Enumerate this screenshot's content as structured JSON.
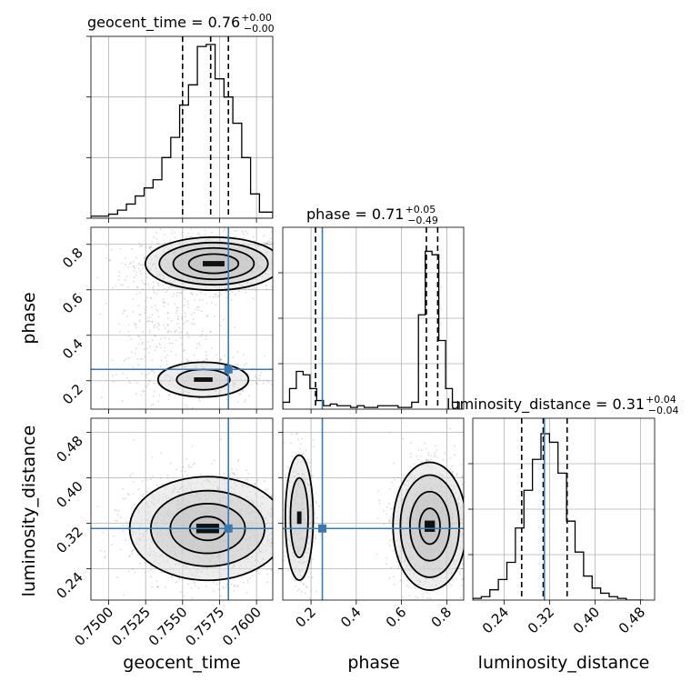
{
  "colors": {
    "truth": "#3b78b0",
    "grid": "#b0b0b0",
    "hist": "#000000",
    "quantile": "#000000",
    "scatter": "#7f7f7f"
  },
  "chart_data": {
    "type": "corner",
    "parameters": [
      "geocent_time",
      "phase",
      "luminosity_distance"
    ],
    "titles": [
      {
        "param": "geocent_time",
        "text": "geocent_time = 0.76",
        "plus": "+0.00",
        "minus": "−0.00"
      },
      {
        "param": "phase",
        "text": "phase = 0.71",
        "plus": "+0.05",
        "minus": "−0.49"
      },
      {
        "param": "luminosity_distance",
        "text": "luminosity_distance = 0.31",
        "plus": "+0.04",
        "minus": "−0.04"
      }
    ],
    "ranges": {
      "geocent_time": [
        0.7488,
        0.7611
      ],
      "phase": [
        0.075,
        0.875
      ],
      "luminosity_distance": [
        0.185,
        0.505
      ]
    },
    "ticks": {
      "geocent_time": {
        "values": [
          0.75,
          0.7525,
          0.755,
          0.7575,
          0.76
        ],
        "labels": [
          "0.7500",
          "0.7525",
          "0.7550",
          "0.7575",
          "0.7600"
        ]
      },
      "phase": {
        "values": [
          0.2,
          0.4,
          0.6,
          0.8
        ],
        "labels": [
          "0.2",
          "0.4",
          "0.6",
          "0.8"
        ]
      },
      "luminosity_distance": {
        "values": [
          0.24,
          0.32,
          0.4,
          0.48
        ],
        "labels": [
          "0.24",
          "0.32",
          "0.40",
          "0.48"
        ]
      }
    },
    "truths": {
      "geocent_time": 0.7581,
      "phase": 0.25,
      "luminosity_distance": 0.311
    },
    "quantiles": {
      "geocent_time": [
        0.755,
        0.7569,
        0.7581
      ],
      "phase": [
        0.22,
        0.71,
        0.76
      ],
      "luminosity_distance": [
        0.271,
        0.309,
        0.351
      ]
    },
    "histograms": {
      "geocent_time": {
        "edges": [
          0.7488,
          0.75,
          0.7506,
          0.7512,
          0.7518,
          0.7524,
          0.753,
          0.7536,
          0.7542,
          0.7548,
          0.7554,
          0.756,
          0.7566,
          0.7572,
          0.7578,
          0.7584,
          0.759,
          0.7596,
          0.7602,
          0.7611
        ],
        "counts": [
          1,
          2,
          4,
          7,
          11,
          15,
          19,
          30,
          40,
          56,
          66,
          85,
          86,
          69,
          60,
          47,
          30,
          12,
          3
        ],
        "max": 90
      },
      "phase": {
        "edges": [
          0.075,
          0.105,
          0.135,
          0.165,
          0.195,
          0.225,
          0.255,
          0.285,
          0.315,
          0.345,
          0.375,
          0.405,
          0.435,
          0.465,
          0.495,
          0.525,
          0.555,
          0.585,
          0.615,
          0.645,
          0.675,
          0.705,
          0.735,
          0.765,
          0.795,
          0.825,
          0.855
        ],
        "counts": [
          4,
          12,
          22,
          20,
          12,
          5,
          2,
          3,
          2,
          2,
          1,
          2,
          1,
          1,
          2,
          2,
          2,
          1,
          1,
          4,
          55,
          92,
          90,
          40,
          12,
          4
        ],
        "max": 106
      },
      "luminosity_distance": {
        "edges": [
          0.185,
          0.2,
          0.215,
          0.23,
          0.245,
          0.26,
          0.275,
          0.29,
          0.305,
          0.32,
          0.335,
          0.35,
          0.365,
          0.38,
          0.395,
          0.41,
          0.425,
          0.44,
          0.455,
          0.47,
          0.485
        ],
        "counts": [
          1,
          2,
          6,
          12,
          22,
          42,
          64,
          82,
          97,
          92,
          74,
          46,
          28,
          14,
          7,
          4,
          2,
          1,
          0,
          0
        ],
        "max": 106
      }
    },
    "yticks_top": {
      "values": [
        0,
        30,
        60,
        90
      ],
      "labels": [
        "",
        "",
        "",
        ""
      ]
    },
    "pair_clusters": [
      {
        "x": "geocent_time",
        "y": "phase",
        "clusters": [
          {
            "cx": 0.7571,
            "cy": 0.715,
            "sx": 0.0021,
            "sy": 0.053,
            "weight": 1500,
            "contours": [
              0.8,
              1.3,
              1.75,
              2.2
            ]
          },
          {
            "cx": 0.7564,
            "cy": 0.205,
            "sx": 0.0018,
            "sy": 0.045,
            "weight": 280,
            "contours": [
              1.0,
              1.7
            ]
          },
          {
            "cx": 0.7537,
            "cy": 0.44,
            "sx": 0.0016,
            "sy": 0.12,
            "weight": 250,
            "contours": []
          }
        ]
      },
      {
        "x": "geocent_time",
        "y": "luminosity_distance",
        "clusters": [
          {
            "cx": 0.7567,
            "cy": 0.311,
            "sx": 0.0022,
            "sy": 0.038,
            "weight": 2200,
            "contours": [
              0.55,
              1.15,
              1.75,
              2.4
            ]
          }
        ]
      },
      {
        "x": "phase",
        "y": "luminosity_distance",
        "clusters": [
          {
            "cx": 0.725,
            "cy": 0.315,
            "sx": 0.065,
            "sy": 0.045,
            "weight": 1600,
            "contours": [
              0.7,
              1.35,
              2.0,
              2.5
            ]
          },
          {
            "cx": 0.148,
            "cy": 0.33,
            "sx": 0.028,
            "sy": 0.05,
            "weight": 520,
            "contours": [
              1.4,
              2.2
            ]
          }
        ]
      }
    ],
    "grid": true
  }
}
